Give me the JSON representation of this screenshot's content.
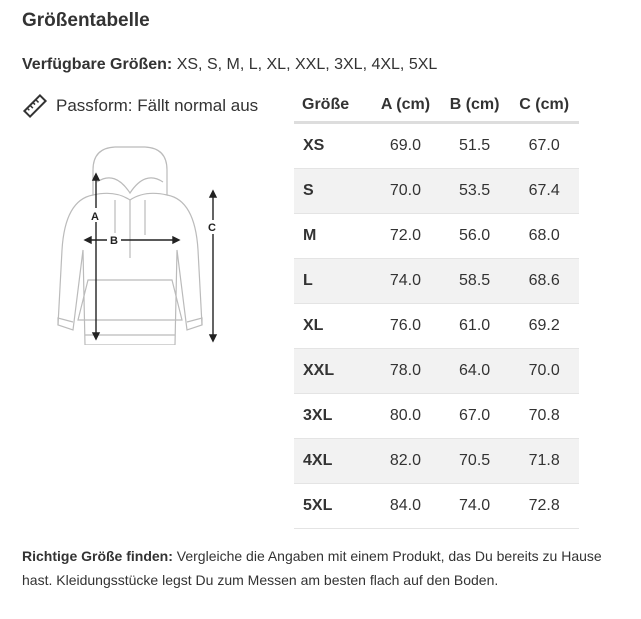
{
  "title": "Größentabelle",
  "available": {
    "label": "Verfügbare Größen:",
    "value": "XS, S, M, L, XL, XXL, 3XL, 4XL, 5XL"
  },
  "fit": {
    "icon": "ruler-icon",
    "text": "Passform: Fällt normal aus"
  },
  "diagram": {
    "labels": [
      "A",
      "B",
      "C"
    ]
  },
  "table": {
    "headers": [
      "Größe",
      "A (cm)",
      "B (cm)",
      "C (cm)"
    ],
    "rows": [
      [
        "XS",
        "69.0",
        "51.5",
        "67.0"
      ],
      [
        "S",
        "70.0",
        "53.5",
        "67.4"
      ],
      [
        "M",
        "72.0",
        "56.0",
        "68.0"
      ],
      [
        "L",
        "74.0",
        "58.5",
        "68.6"
      ],
      [
        "XL",
        "76.0",
        "61.0",
        "69.2"
      ],
      [
        "XXL",
        "78.0",
        "64.0",
        "70.0"
      ],
      [
        "3XL",
        "80.0",
        "67.0",
        "70.8"
      ],
      [
        "4XL",
        "82.0",
        "70.5",
        "71.8"
      ],
      [
        "5XL",
        "84.0",
        "74.0",
        "72.8"
      ]
    ]
  },
  "note": {
    "label": "Richtige Größe finden:",
    "text": " Vergleiche die Angaben mit einem Produkt, das Du bereits zu Hause hast. Kleidungsstücke legst Du zum Messen am besten flach auf den Boden."
  }
}
